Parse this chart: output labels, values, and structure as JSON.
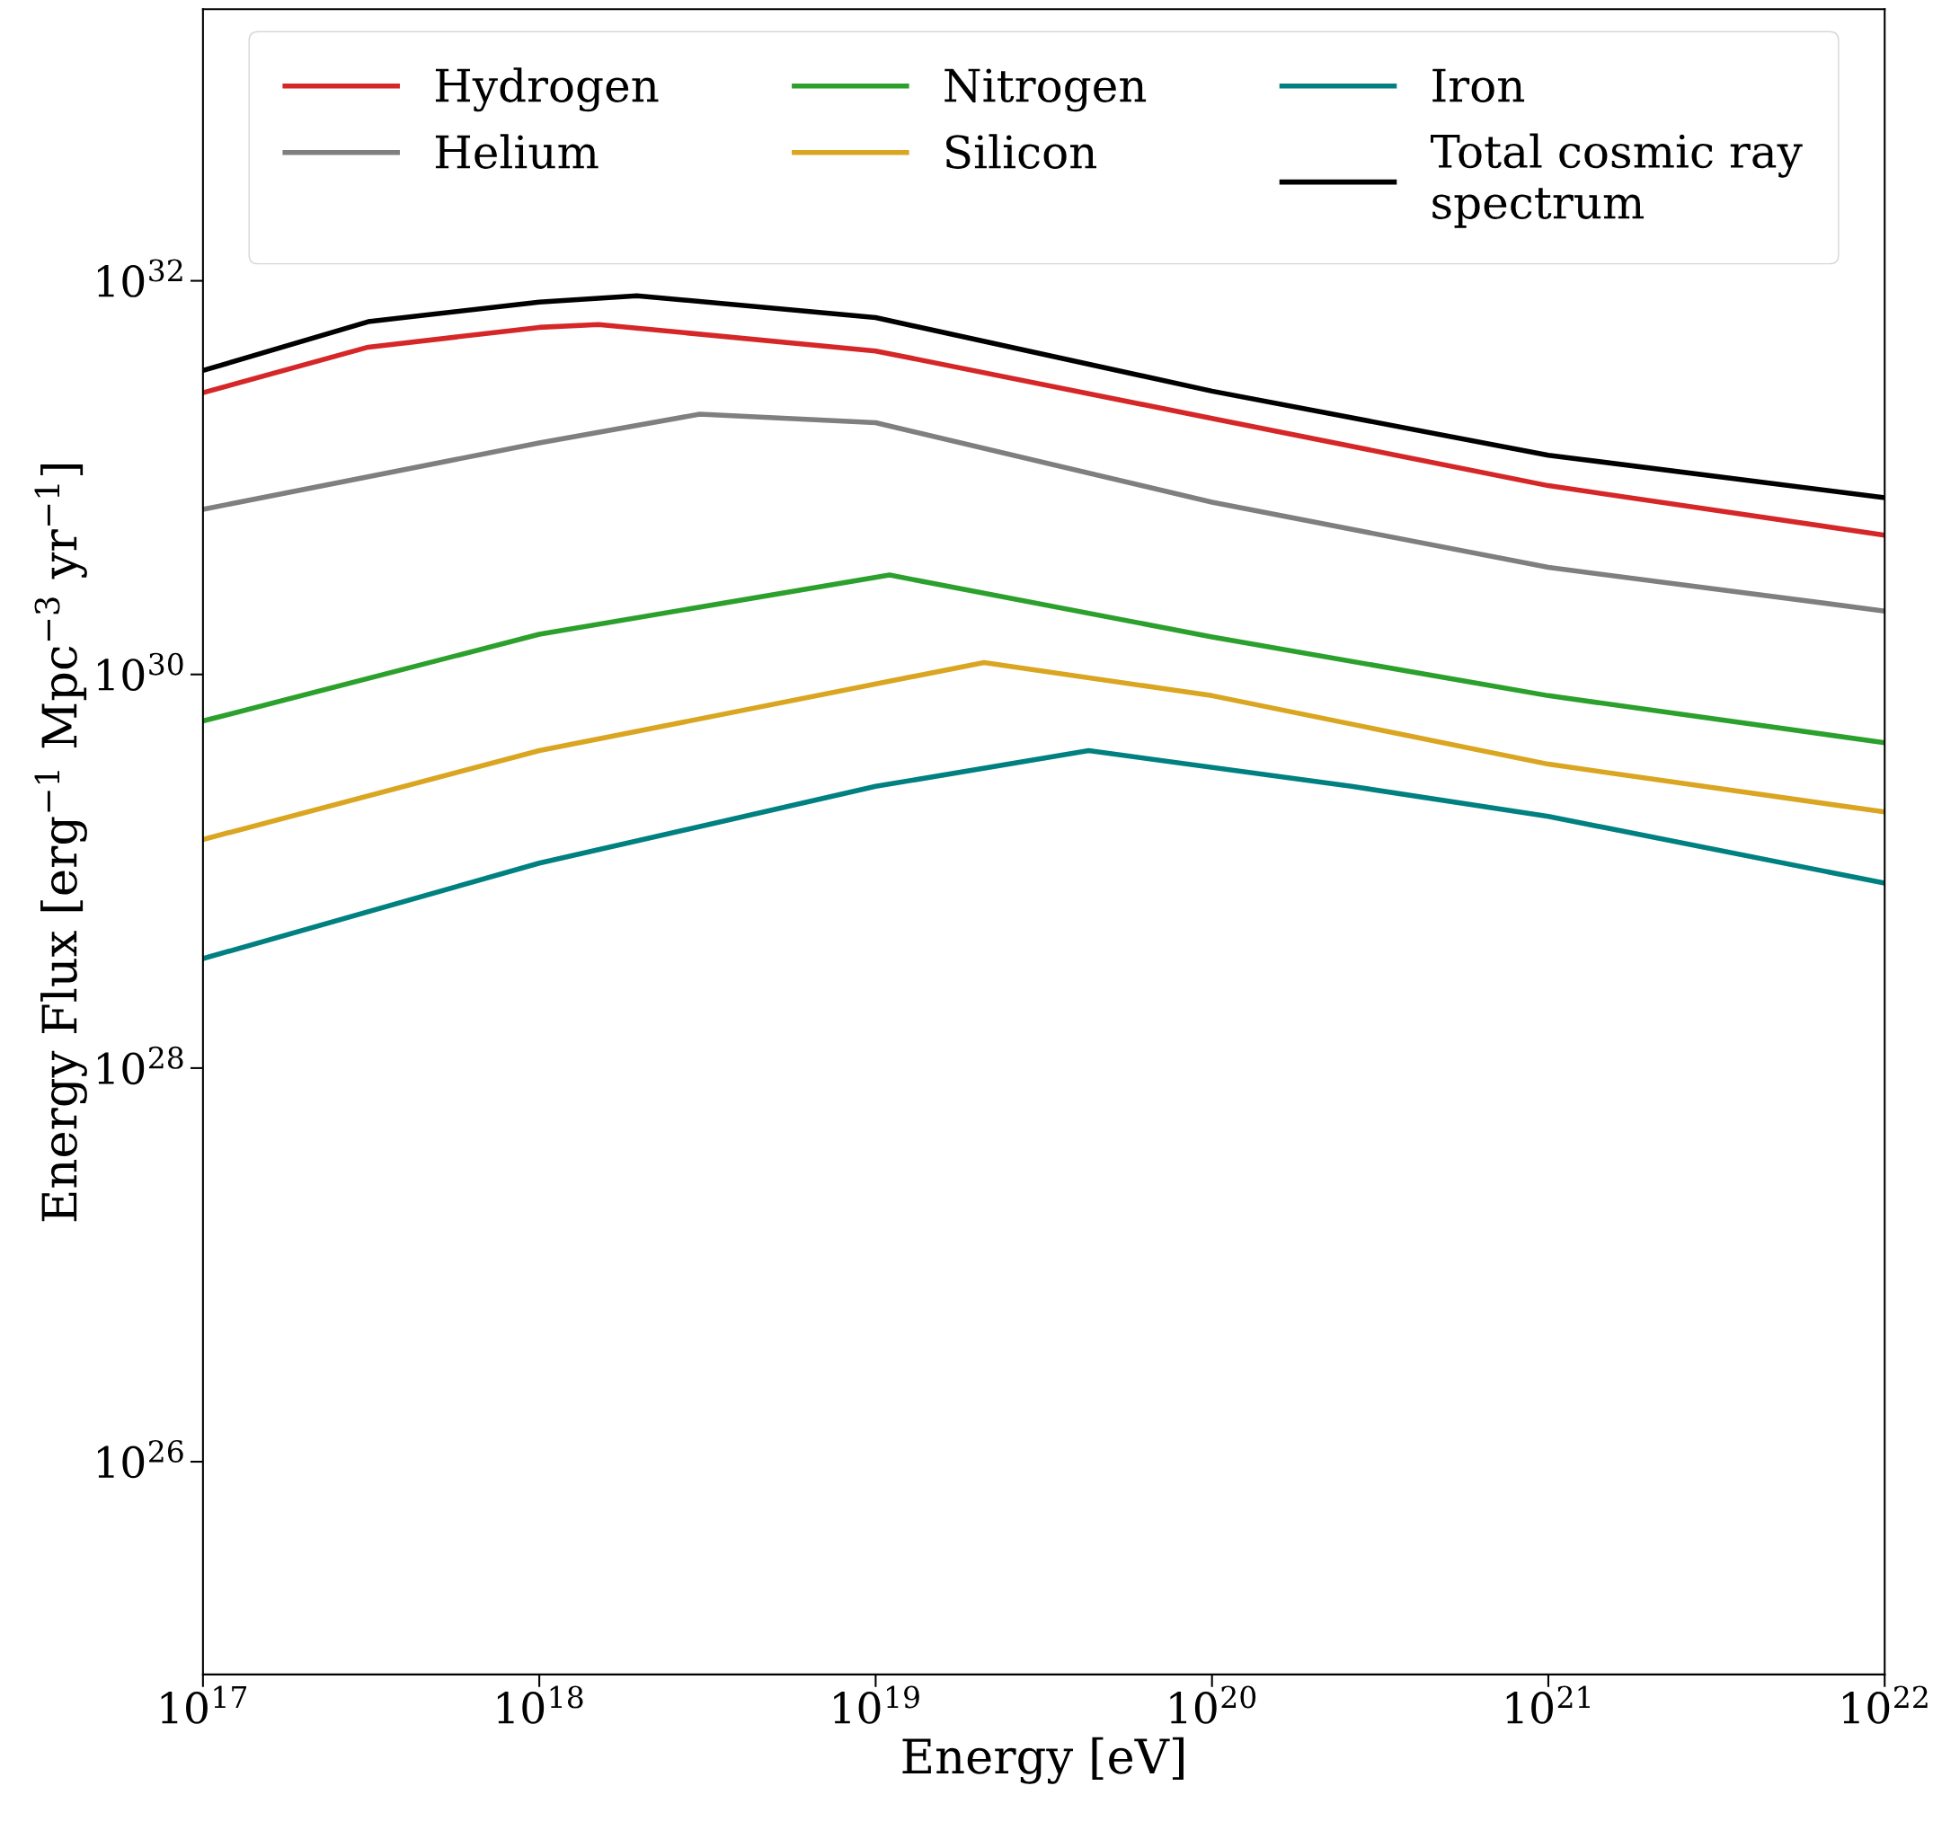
{
  "chart_data": {
    "type": "line",
    "xlabel": "Energy [eV]",
    "ylabel": "Energy Flux [erg$^{−1}$ Mpc$^{−3}$ yr$^{−1}$]",
    "log": "xy",
    "grid": false,
    "legend": "top",
    "line_style": "solid",
    "marker": "none",
    "xlim": [
      1e+17,
      1e+22
    ],
    "ylim": [
      8.3e+24,
      2.4e+33
    ],
    "xticks": [
      {
        "value": 1e+17,
        "label": "10$^{17}$"
      },
      {
        "value": 1e+18,
        "label": "10$^{18}$"
      },
      {
        "value": 1e+19,
        "label": "10$^{19}$"
      },
      {
        "value": 1e+20,
        "label": "10$^{20}$"
      },
      {
        "value": 1e+21,
        "label": "10$^{21}$"
      },
      {
        "value": 1e+22,
        "label": "10$^{22}$"
      }
    ],
    "yticks": [
      {
        "value": 1e+26,
        "label": "10$^{26}$"
      },
      {
        "value": 1e+28,
        "label": "10$^{28}$"
      },
      {
        "value": 1e+30,
        "label": "10$^{30}$"
      },
      {
        "value": 1e+32,
        "label": "10$^{32}$"
      }
    ],
    "series": [
      {
        "name": "Hydrogen",
        "color": "#d62728",
        "x": [
          1e+17,
          3.1e+17,
          1e+18,
          1.5e+18,
          1e+19,
          1e+20,
          1e+21,
          1e+22
        ],
        "values": [
          2.7e+31,
          4.6e+31,
          5.8e+31,
          6e+31,
          4.4e+31,
          2e+31,
          9.1e+30,
          5.1e+30
        ]
      },
      {
        "name": "Helium",
        "color": "#7f7f7f",
        "x": [
          1e+17,
          1e+18,
          3e+18,
          1e+19,
          1e+20,
          1e+21,
          1e+22
        ],
        "values": [
          6.9e+30,
          1.5e+31,
          2.1e+31,
          1.9e+31,
          7.5e+30,
          3.5e+30,
          2.1e+30
        ]
      },
      {
        "name": "Nitrogen",
        "color": "#2ca02c",
        "x": [
          1e+17,
          1e+18,
          1.1e+19,
          1e+20,
          1e+21,
          1e+22
        ],
        "values": [
          5.8e+29,
          1.6e+30,
          3.2e+30,
          1.55e+30,
          7.8e+29,
          4.5e+29
        ]
      },
      {
        "name": "Silicon",
        "color": "#daa520",
        "x": [
          1e+17,
          1e+18,
          2.1e+19,
          1e+20,
          1e+21,
          1e+22
        ],
        "values": [
          1.45e+29,
          4.1e+29,
          1.15e+30,
          7.8e+29,
          3.5e+29,
          2e+29
        ]
      },
      {
        "name": "Iron",
        "color": "#008080",
        "x": [
          1e+17,
          1e+18,
          1e+19,
          4.3e+19,
          2.6e+20,
          1e+21,
          1e+22
        ],
        "values": [
          3.6e+28,
          1.1e+29,
          2.7e+29,
          4.1e+29,
          2.7e+29,
          1.9e+29,
          8.7e+28
        ]
      },
      {
        "name": "Total cosmic ray\nspectrum",
        "color": "#000000",
        "x": [
          1e+17,
          3.1e+17,
          1e+18,
          1.95e+18,
          1e+19,
          1e+20,
          1e+21,
          1e+22
        ],
        "values": [
          3.5e+31,
          6.2e+31,
          7.8e+31,
          8.4e+31,
          6.5e+31,
          2.75e+31,
          1.3e+31,
          7.9e+30
        ]
      }
    ]
  }
}
